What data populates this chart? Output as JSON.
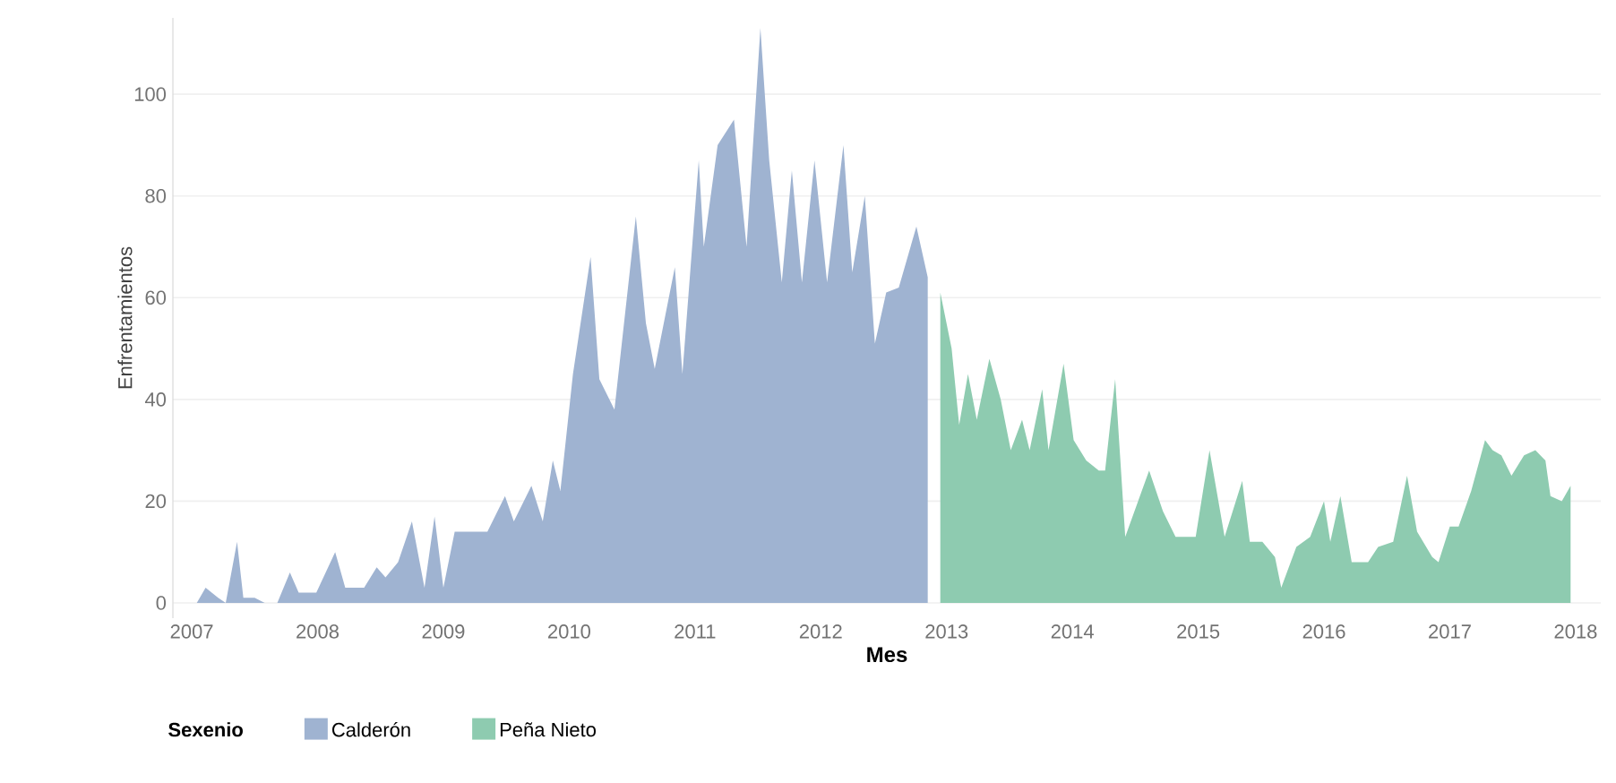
{
  "chart_data": {
    "type": "area",
    "xlabel": "Mes",
    "ylabel": "Enfrentamientos",
    "legend_title": "Sexenio",
    "xlim": [
      2006.85,
      2018.2
    ],
    "xticks": [
      2007,
      2008,
      2009,
      2010,
      2011,
      2012,
      2013,
      2014,
      2015,
      2016,
      2017,
      2018
    ],
    "ylim": [
      -3,
      115
    ],
    "yticks": [
      0,
      20,
      40,
      60,
      80,
      100
    ],
    "grid": "y",
    "legend": "bottom left",
    "series": [
      {
        "name": "Calderón",
        "color": "#9fb3d1",
        "x": [
          2007.04,
          2007.11,
          2007.21,
          2007.27,
          2007.36,
          2007.41,
          2007.5,
          2007.58,
          2007.68,
          2007.78,
          2007.85,
          2007.99,
          2008.14,
          2008.22,
          2008.37,
          2008.47,
          2008.54,
          2008.64,
          2008.75,
          2008.85,
          2008.93,
          2009.0,
          2009.09,
          2009.2,
          2009.35,
          2009.49,
          2009.56,
          2009.7,
          2009.79,
          2009.87,
          2009.93,
          2010.03,
          2010.17,
          2010.24,
          2010.36,
          2010.53,
          2010.61,
          2010.68,
          2010.84,
          2010.9,
          2011.03,
          2011.07,
          2011.18,
          2011.31,
          2011.41,
          2011.52,
          2011.59,
          2011.69,
          2011.77,
          2011.85,
          2011.95,
          2012.05,
          2012.18,
          2012.25,
          2012.35,
          2012.43,
          2012.52,
          2012.62,
          2012.76,
          2012.85
        ],
        "values": [
          0,
          3,
          1,
          0,
          12,
          1,
          1,
          0,
          0,
          6,
          2,
          2,
          10,
          3,
          3,
          7,
          5,
          8,
          16,
          3,
          17,
          3,
          14,
          14,
          14,
          21,
          16,
          23,
          16,
          28,
          22,
          45,
          68,
          44,
          38,
          76,
          55,
          46,
          66,
          45,
          87,
          70,
          90,
          95,
          70,
          113,
          87,
          63,
          85,
          63,
          87,
          63,
          90,
          65,
          80,
          51,
          61,
          62,
          74,
          64
        ]
      },
      {
        "name": "Peña Nieto",
        "color": "#8ecbb0",
        "x": [
          2012.95,
          2013.04,
          2013.1,
          2013.17,
          2013.24,
          2013.34,
          2013.43,
          2013.51,
          2013.6,
          2013.66,
          2013.76,
          2013.81,
          2013.93,
          2014.01,
          2014.11,
          2014.21,
          2014.26,
          2014.34,
          2014.42,
          2014.61,
          2014.72,
          2014.82,
          2014.98,
          2015.09,
          2015.21,
          2015.35,
          2015.41,
          2015.51,
          2015.61,
          2015.66,
          2015.78,
          2015.89,
          2016.0,
          2016.05,
          2016.13,
          2016.22,
          2016.35,
          2016.43,
          2016.55,
          2016.66,
          2016.74,
          2016.86,
          2016.91,
          2017.0,
          2017.07,
          2017.17,
          2017.28,
          2017.34,
          2017.41,
          2017.49,
          2017.59,
          2017.68,
          2017.76,
          2017.8,
          2017.89,
          2017.96
        ],
        "values": [
          61,
          50,
          35,
          45,
          36,
          48,
          40,
          30,
          36,
          30,
          42,
          30,
          47,
          32,
          28,
          26,
          26,
          44,
          13,
          26,
          18,
          13,
          13,
          30,
          13,
          24,
          12,
          12,
          9,
          3,
          11,
          13,
          20,
          12,
          21,
          8,
          8,
          11,
          12,
          25,
          14,
          9,
          8,
          15,
          15,
          22,
          32,
          30,
          29,
          25,
          29,
          30,
          28,
          21,
          20,
          23
        ]
      }
    ]
  }
}
